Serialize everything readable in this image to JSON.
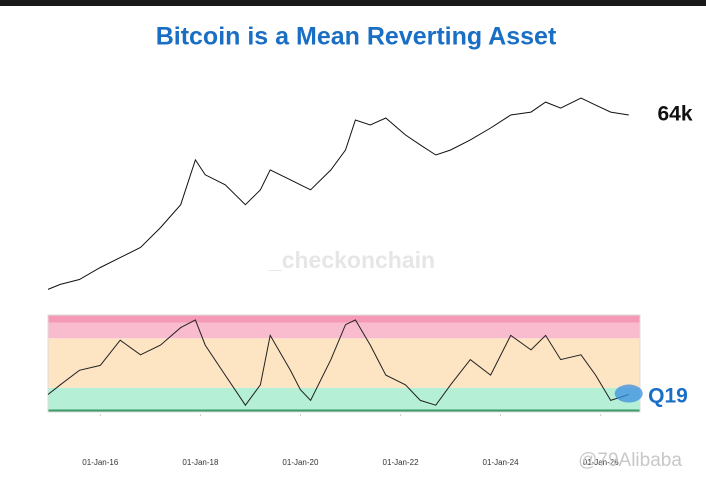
{
  "chart_data": [
    {
      "type": "line",
      "title": "Bitcoin is a Mean Reverting Asset",
      "log_scale": true,
      "x": [
        "2014-12-15",
        "2015-03-15",
        "2015-08-01",
        "2016-01-01",
        "2016-05-25",
        "2016-10-20",
        "2017-03-15",
        "2017-08-10",
        "2017-11-25",
        "2018-02-05",
        "2018-07-01",
        "2018-11-25",
        "2019-03-15",
        "2019-05-25",
        "2019-10-20",
        "2020-01-01",
        "2020-03-15",
        "2020-08-10",
        "2020-11-25",
        "2021-02-05",
        "2021-05-25",
        "2021-09-15",
        "2022-02-05",
        "2022-05-25",
        "2022-09-15",
        "2023-01-01",
        "2023-05-25",
        "2023-10-20",
        "2024-03-15",
        "2024-08-10",
        "2024-11-25",
        "2025-03-15",
        "2025-08-10",
        "2025-11-25",
        "2026-03-15",
        "2026-07-25"
      ],
      "series": [
        {
          "color": "#111111",
          "values": [
            251,
            294,
            344,
            504,
            690,
            950,
            1790,
            3700,
            15400,
            9580,
            6970,
            3700,
            5950,
            11200,
            8170,
            6970,
            5950,
            11200,
            21100,
            54600,
            46600,
            58200,
            34000,
            24800,
            18000,
            21100,
            29000,
            42400,
            64000,
            70300,
            96600,
            79900,
            109700,
            87900,
            70300,
            64000
          ]
        }
      ],
      "xlim": [
        "2014-12-15",
        "2026-10-15"
      ],
      "ylim": [
        210,
        110000
      ],
      "end_label": "64k",
      "watermark": "_checkonchain"
    },
    {
      "type": "line",
      "x": [
        "2014-12-15",
        "2015-03-15",
        "2015-08-01",
        "2016-01-01",
        "2016-05-25",
        "2016-10-20",
        "2017-03-15",
        "2017-08-10",
        "2017-11-25",
        "2018-02-05",
        "2018-07-01",
        "2018-11-25",
        "2019-03-15",
        "2019-05-25",
        "2019-10-20",
        "2020-01-01",
        "2020-03-15",
        "2020-08-10",
        "2020-11-25",
        "2021-02-05",
        "2021-05-25",
        "2021-09-15",
        "2022-02-05",
        "2022-05-25",
        "2022-09-15",
        "2023-01-01",
        "2023-05-25",
        "2023-10-20",
        "2024-03-15",
        "2024-08-10",
        "2024-11-25",
        "2025-03-15",
        "2025-08-10",
        "2025-11-25",
        "2026-03-15",
        "2026-07-25"
      ],
      "series": [
        {
          "color": "#222222",
          "values": [
            0.18,
            0.28,
            0.43,
            0.48,
            0.74,
            0.59,
            0.69,
            0.87,
            0.95,
            0.69,
            0.38,
            0.07,
            0.28,
            0.79,
            0.43,
            0.23,
            0.12,
            0.54,
            0.9,
            0.95,
            0.69,
            0.38,
            0.28,
            0.12,
            0.07,
            0.28,
            0.54,
            0.38,
            0.79,
            0.64,
            0.79,
            0.54,
            0.59,
            0.38,
            0.12,
            0.18
          ]
        }
      ],
      "bands": [
        {
          "from": 0,
          "to": 0.25,
          "color": "#b5efd6"
        },
        {
          "from": 0.25,
          "to": 0.76,
          "color": "#fde4c3"
        },
        {
          "from": 0.76,
          "to": 0.92,
          "color": "#f9bccf"
        },
        {
          "from": 0.92,
          "to": 1,
          "color": "#f59ab6"
        }
      ],
      "xlim": [
        "2014-12-15",
        "2026-10-15"
      ],
      "ylim": [
        0,
        1
      ],
      "xticks": [
        {
          "value": "2016-01-01",
          "label": "01-Jan-16"
        },
        {
          "value": "2018-01-01",
          "label": "01-Jan-18"
        },
        {
          "value": "2020-01-01",
          "label": "01-Jan-20"
        },
        {
          "value": "2022-01-01",
          "label": "01-Jan-22"
        },
        {
          "value": "2024-01-01",
          "label": "01-Jan-24"
        },
        {
          "value": "2026-01-01",
          "label": "01-Jan-26"
        }
      ],
      "end_label": "Q19",
      "watermark": "@79Alibaba"
    }
  ]
}
